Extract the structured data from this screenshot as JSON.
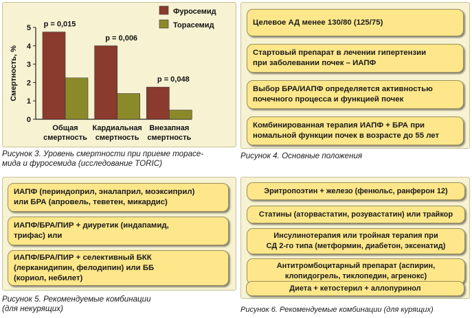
{
  "figure3": {
    "caption_num": "Рисунок 3.",
    "caption_text": " Уровень смертности при приеме торасе-",
    "caption_text2": "мида и фуросемида (исследование TORIC)"
  },
  "chart_data": {
    "type": "bar",
    "categories": [
      [
        "Общая",
        "смертность"
      ],
      [
        "Кардиальная",
        "смертность"
      ],
      [
        "Внезапная",
        "смертность"
      ]
    ],
    "series": [
      {
        "name": "Фуросемид",
        "color": "#8b3a2e",
        "values": [
          4.75,
          4.0,
          1.75
        ]
      },
      {
        "name": "Торасемид",
        "color": "#8a8a2a",
        "values": [
          2.25,
          1.4,
          0.5
        ]
      }
    ],
    "ylabel": "Смертность, %",
    "ylim": [
      0,
      5
    ],
    "yticks": [
      0,
      1,
      2,
      3,
      4,
      5
    ],
    "annotations": [
      "p = 0,015",
      "p = 0,006",
      "p = 0,048"
    ],
    "legend_position": "top-right"
  },
  "figure4": {
    "caption_num": "Рисунок 4.",
    "caption_text": " Основные положения",
    "items": [
      [
        "Целевое АД менее 130/80 (125/75)"
      ],
      [
        "Стартовый препарат в лечении гипертензии",
        "при заболевании почек – ИАПФ"
      ],
      [
        "Выбор БРА/ИАПФ определяется активностью",
        "почечного процесса и функцией почек"
      ],
      [
        "Комбинированная терапия ИАПФ + БРА при",
        "номальной функции почек в возрасте до 55 лет"
      ]
    ]
  },
  "figure5": {
    "caption_num": "Рисунок 5.",
    "caption_text": " Рекомендуемые комбинации",
    "caption_text2": "(для некурящих)",
    "items": [
      [
        "ИАПФ (периндоприл, эналаприл, моэксиприл)",
        "или БРА (апровель, теветен, микардис)"
      ],
      [
        "ИАПФ/БРА/ПИР + диуретик (индапамид,",
        "трифас) или"
      ],
      [
        "ИАПФ/БРА/ПИР  + селективный БКК",
        "(лерканидипин, фелодипин) или ББ",
        "(кориол, небилет)"
      ]
    ]
  },
  "figure6": {
    "caption_num": "Рисунок 6.",
    "caption_text": " Рекомендуемые комбинации (для курящих)",
    "items": [
      [
        "Эритропоэтин + железо (фенюльс, ранферон 12)"
      ],
      [
        "Статины (аторвастатин, розувастатин) или трайкор"
      ],
      [
        "Инсулинотерапия или тройная терапия при",
        "СД 2-го типа (метформин, диабетон, эксенатид)"
      ],
      [
        "Антитромбоцитарный препарат (аспирин,",
        "клопидогрель, тиклопедин, агренокс)"
      ],
      [
        "Диета + кетостерил + аллопуринол"
      ]
    ]
  }
}
